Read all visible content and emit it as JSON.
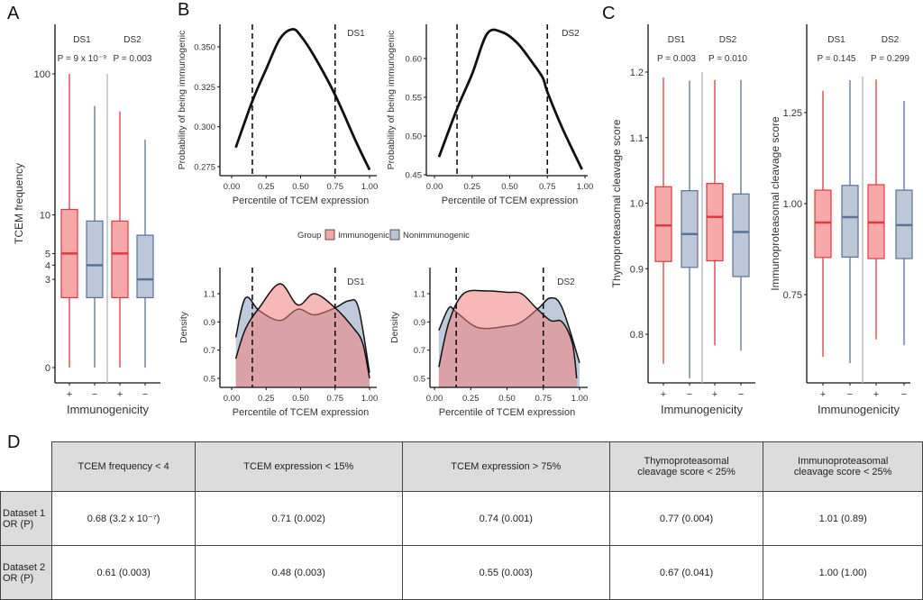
{
  "panels": {
    "a": "A",
    "b": "B",
    "c": "C",
    "d": "D"
  },
  "colors": {
    "immunogenic": "#e0393e",
    "immunogenic_fill": "#f7a8a8",
    "nonimmunogenic": "#5b7396",
    "nonimmunogenic_fill": "#bcc7d8",
    "separator": "#bdbdbd"
  },
  "legend": {
    "title": "Group",
    "items": [
      {
        "label": "Immunogenic",
        "color": "#f4a6a3"
      },
      {
        "label": "Nonimmunogenic",
        "color": "#b9c3d3"
      }
    ]
  },
  "chart_data": [
    {
      "id": "A",
      "type": "box",
      "ylabel": "TCEM frequency",
      "xlabel": "Immunogenicity",
      "yscale": "log(x+1)",
      "yticks": [
        0,
        3,
        4,
        5,
        10,
        100
      ],
      "groups": [
        {
          "label": "DS1",
          "p": "P = 9 x 10⁻⁹"
        },
        {
          "label": "DS2",
          "p": "P = 0.003"
        }
      ],
      "categories": [
        "+",
        "−",
        "+",
        "−"
      ],
      "boxes": [
        {
          "group": "DS1",
          "immunogenicity": "+",
          "min": 0,
          "q1": 2,
          "median": 5,
          "q3": 11,
          "max": 100
        },
        {
          "group": "DS1",
          "immunogenicity": "−",
          "min": 0,
          "q1": 2,
          "median": 4,
          "q3": 9,
          "max": 60
        },
        {
          "group": "DS2",
          "immunogenicity": "+",
          "min": 0,
          "q1": 2,
          "median": 5,
          "q3": 9,
          "max": 55
        },
        {
          "group": "DS2",
          "immunogenicity": "−",
          "min": 0,
          "q1": 2,
          "median": 3,
          "q3": 7,
          "max": 35
        }
      ]
    },
    {
      "id": "B-prob-DS1",
      "type": "line",
      "label": "DS1",
      "xlabel": "Percentile of TCEM expression",
      "ylabel": "Probability of being immunogenic",
      "xticks": [
        "0.00",
        "0.25",
        "0.50",
        "0.75",
        "1.00"
      ],
      "yticks": [
        "0.275",
        "0.300",
        "0.325",
        "0.350"
      ],
      "xlim": [
        0,
        1
      ],
      "vlines": [
        0.15,
        0.75
      ],
      "x": [
        0.03,
        0.15,
        0.25,
        0.35,
        0.44,
        0.5,
        0.6,
        0.75,
        0.9,
        1.0
      ],
      "y": [
        0.287,
        0.316,
        0.336,
        0.355,
        0.361,
        0.357,
        0.344,
        0.32,
        0.291,
        0.273
      ]
    },
    {
      "id": "B-prob-DS2",
      "type": "line",
      "label": "DS2",
      "xlabel": "Percentile of TCEM expression",
      "ylabel": "Probability of being immunogenic",
      "xticks": [
        "0.00",
        "0.25",
        "0.50",
        "0.75",
        "1.00"
      ],
      "yticks": [
        "0.45",
        "0.50",
        "0.55",
        "0.60"
      ],
      "xlim": [
        0,
        1
      ],
      "vlines": [
        0.15,
        0.75
      ],
      "x": [
        0.03,
        0.15,
        0.25,
        0.35,
        0.45,
        0.55,
        0.65,
        0.72,
        0.75,
        0.85,
        0.98
      ],
      "y": [
        0.473,
        0.535,
        0.58,
        0.632,
        0.634,
        0.62,
        0.595,
        0.575,
        0.557,
        0.51,
        0.457
      ]
    },
    {
      "id": "B-density-DS1",
      "type": "area",
      "label": "DS1",
      "xlabel": "Percentile of TCEM expression",
      "ylabel": "Density",
      "xticks": [
        "0.00",
        "0.25",
        "0.50",
        "0.75",
        "1.00"
      ],
      "yticks": [
        "0.5",
        "0.7",
        "0.9",
        "1.1"
      ],
      "vlines": [
        0.15,
        0.75
      ],
      "series": [
        {
          "name": "Nonimmunogenic",
          "x": [
            0.03,
            0.1,
            0.2,
            0.35,
            0.48,
            0.6,
            0.75,
            0.85,
            0.92,
            1.0
          ],
          "y": [
            0.79,
            1.07,
            0.98,
            0.91,
            0.99,
            0.95,
            1.0,
            1.05,
            1.0,
            0.54
          ]
        },
        {
          "name": "Immunogenic",
          "x": [
            0.03,
            0.1,
            0.2,
            0.35,
            0.48,
            0.6,
            0.75,
            0.88,
            0.95,
            1.0
          ],
          "y": [
            0.64,
            0.85,
            1.0,
            1.17,
            1.02,
            1.1,
            1.0,
            0.86,
            0.75,
            0.5
          ]
        }
      ]
    },
    {
      "id": "B-density-DS2",
      "type": "area",
      "label": "DS2",
      "xlabel": "Percentile of TCEM expression",
      "ylabel": "Density",
      "xticks": [
        "0.00",
        "0.25",
        "0.50",
        "0.75",
        "1.00"
      ],
      "yticks": [
        "0.5",
        "0.7",
        "0.9",
        "1.1"
      ],
      "vlines": [
        0.15,
        0.75
      ],
      "series": [
        {
          "name": "Nonimmunogenic",
          "x": [
            0.03,
            0.1,
            0.15,
            0.3,
            0.5,
            0.6,
            0.72,
            0.8,
            0.88,
            1.0
          ],
          "y": [
            0.84,
            1.0,
            0.97,
            0.86,
            0.87,
            0.9,
            1.0,
            1.07,
            1.0,
            0.61
          ]
        },
        {
          "name": "Immunogenic",
          "x": [
            0.03,
            0.1,
            0.2,
            0.35,
            0.5,
            0.6,
            0.7,
            0.8,
            0.88,
            0.95,
            0.98
          ],
          "y": [
            0.58,
            0.9,
            1.1,
            1.12,
            1.11,
            1.1,
            1.0,
            0.91,
            0.9,
            0.75,
            0.5
          ]
        }
      ]
    },
    {
      "id": "C-thymo",
      "type": "box",
      "ylabel": "Thymoproteasomal cleavage score",
      "xlabel": "Immunogenicity",
      "yticks": [
        "0.8",
        "0.9",
        "1.0",
        "1.1",
        "1.2"
      ],
      "groups": [
        {
          "label": "DS1",
          "p": "P = 0.003"
        },
        {
          "label": "DS2",
          "p": "P = 0.010"
        }
      ],
      "categories": [
        "+",
        "−",
        "+",
        "−"
      ],
      "boxes": [
        {
          "group": "DS1",
          "immunogenicity": "+",
          "min": 0.755,
          "q1": 0.911,
          "median": 0.966,
          "q3": 1.025,
          "max": 1.192
        },
        {
          "group": "DS1",
          "immunogenicity": "−",
          "min": 0.733,
          "q1": 0.902,
          "median": 0.953,
          "q3": 1.019,
          "max": 1.187
        },
        {
          "group": "DS2",
          "immunogenicity": "+",
          "min": 0.783,
          "q1": 0.912,
          "median": 0.979,
          "q3": 1.03,
          "max": 1.188
        },
        {
          "group": "DS2",
          "immunogenicity": "−",
          "min": 0.775,
          "q1": 0.888,
          "median": 0.956,
          "q3": 1.014,
          "max": 1.188
        }
      ]
    },
    {
      "id": "C-immuno",
      "type": "box",
      "ylabel": "Immunoproteasomal cleavage score",
      "xlabel": "Immunogenicity",
      "yticks": [
        "0.75",
        "1.00",
        "1.25"
      ],
      "groups": [
        {
          "label": "DS1",
          "p": "P = 0.145"
        },
        {
          "label": "DS2",
          "p": "P = 0.299"
        }
      ],
      "categories": [
        "+",
        "−",
        "+",
        "−"
      ],
      "boxes": [
        {
          "group": "DS1",
          "immunogenicity": "+",
          "min": 0.579,
          "q1": 0.852,
          "median": 0.948,
          "q3": 1.037,
          "max": 1.31
        },
        {
          "group": "DS1",
          "immunogenicity": "−",
          "min": 0.562,
          "q1": 0.853,
          "median": 0.963,
          "q3": 1.05,
          "max": 1.339
        },
        {
          "group": "DS2",
          "immunogenicity": "+",
          "min": 0.627,
          "q1": 0.849,
          "median": 0.948,
          "q3": 1.052,
          "max": 1.341
        },
        {
          "group": "DS2",
          "immunogenicity": "−",
          "min": 0.611,
          "q1": 0.849,
          "median": 0.941,
          "q3": 1.037,
          "max": 1.282
        }
      ]
    }
  ],
  "table": {
    "headers": [
      "TCEM frequency < 4",
      "TCEM expression < 15%",
      "TCEM expression > 75%",
      "Thymoproteasomal\ncleavage score < 25%",
      "Immunoproteasomal\ncleavage score < 25%"
    ],
    "rows": [
      {
        "label": "Dataset 1\nOR (P)",
        "values": [
          "0.68 (3.2 x 10⁻⁷)",
          "0.71 (0.002)",
          "0.74 (0.001)",
          "0.77 (0.004)",
          "1.01 (0.89)"
        ]
      },
      {
        "label": "Dataset 2\nOR (P)",
        "values": [
          "0.61 (0.003)",
          "0.48 (0.003)",
          "0.55 (0.003)",
          "0.67 (0.041)",
          "1.00 (1.00)"
        ]
      }
    ]
  }
}
